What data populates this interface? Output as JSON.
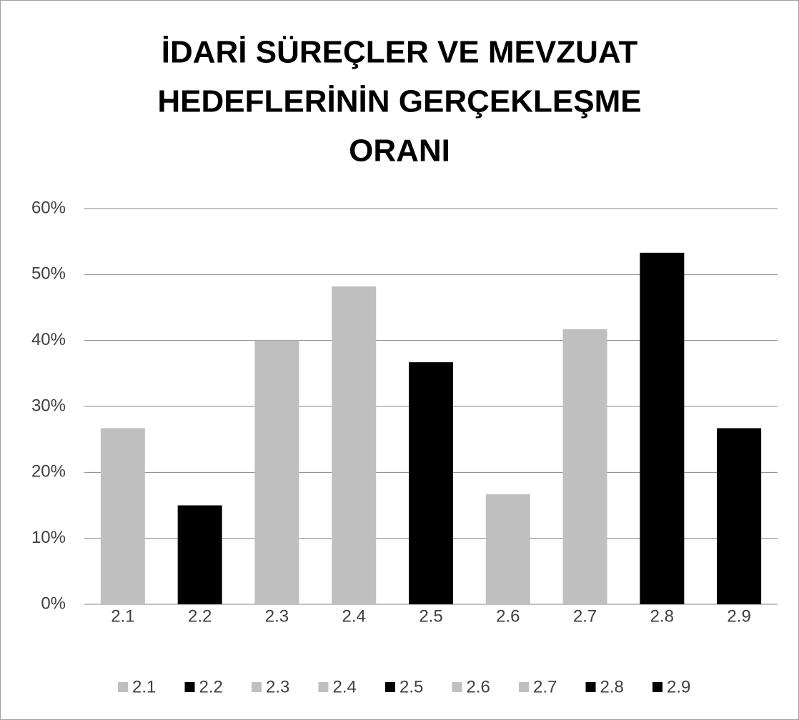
{
  "chart_data": {
    "type": "bar",
    "title": [
      "İDARİ SÜREÇLER VE MEVZUAT",
      "HEDEFLERİNİN GERÇEKLEŞME",
      "ORANI"
    ],
    "categories": [
      "2.1",
      "2.2",
      "2.3",
      "2.4",
      "2.5",
      "2.6",
      "2.7",
      "2.8",
      "2.9"
    ],
    "values": [
      26.7,
      15,
      40,
      48.2,
      36.7,
      16.7,
      41.7,
      53.3,
      26.7
    ],
    "colors": [
      "#bfbfbf",
      "#000000",
      "#bfbfbf",
      "#bfbfbf",
      "#000000",
      "#bfbfbf",
      "#bfbfbf",
      "#000000",
      "#000000"
    ],
    "ylim": [
      0,
      60
    ],
    "yticks": [
      {
        "value": 0,
        "label": "0%"
      },
      {
        "value": 10,
        "label": "10%"
      },
      {
        "value": 20,
        "label": "20%"
      },
      {
        "value": 30,
        "label": "30%"
      },
      {
        "value": 40,
        "label": "40%"
      },
      {
        "value": 50,
        "label": "50%"
      },
      {
        "value": 60,
        "label": "60%"
      }
    ],
    "grid": true,
    "legend": "bottom"
  }
}
